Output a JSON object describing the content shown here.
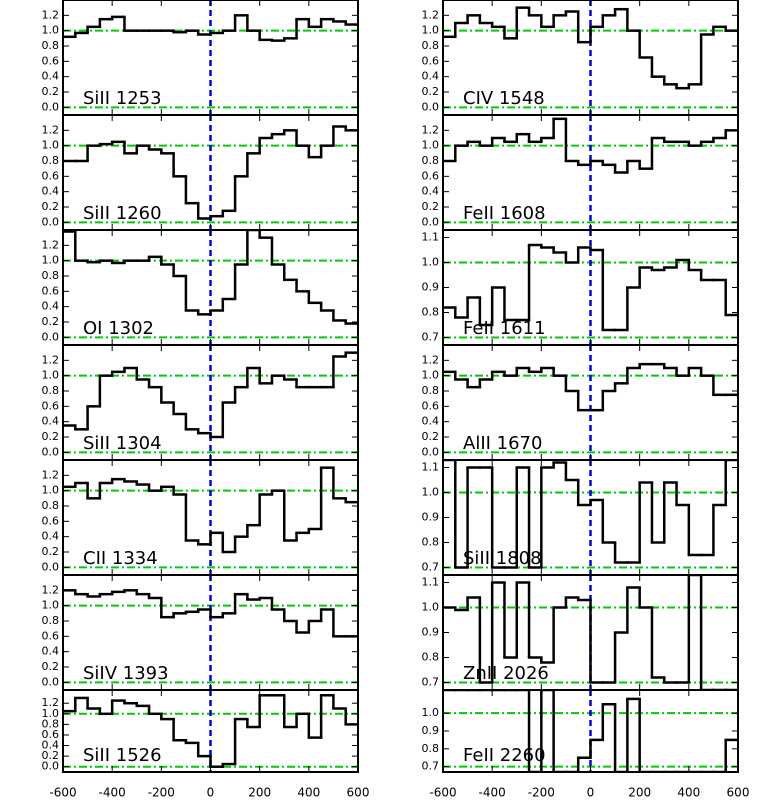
{
  "chart_data": {
    "type": "step",
    "xlim": [
      -600,
      600
    ],
    "xticks": [
      -600,
      -400,
      -200,
      0,
      200,
      400,
      600
    ],
    "bins": [
      -600,
      -550,
      -500,
      -450,
      -400,
      -350,
      -300,
      -250,
      -200,
      -150,
      -100,
      -50,
      0,
      50,
      100,
      150,
      200,
      250,
      300,
      350,
      400,
      450,
      500,
      550,
      600
    ],
    "continuum": 1,
    "center": 0,
    "line_color": "#000000",
    "continuum_color": "#00cc00",
    "center_color": "#0000dd",
    "panels": [
      {
        "label": "SiII 1253",
        "ylim": [
          -0.1,
          1.4
        ],
        "yticks": [
          {
            "value": 0,
            "label": "0.0"
          },
          0.2,
          0.4,
          0.6,
          0.8,
          {
            "value": 1,
            "label": "1.0"
          },
          1.2
        ],
        "values": [
          0.92,
          0.97,
          1.05,
          1.15,
          1.18,
          1.0,
          1.0,
          1.0,
          1.0,
          0.98,
          1.0,
          0.95,
          0.97,
          1.0,
          1.2,
          1.0,
          0.88,
          0.87,
          0.9,
          1.15,
          1.05,
          1.15,
          1.12,
          1.08
        ]
      },
      {
        "label": "SiII 1260",
        "ylim": [
          -0.1,
          1.4
        ],
        "yticks": [
          {
            "value": 0,
            "label": "0.0"
          },
          0.2,
          0.4,
          0.6,
          0.8,
          {
            "value": 1,
            "label": "1.0"
          },
          1.2
        ],
        "values": [
          0.8,
          0.8,
          1.0,
          1.02,
          1.05,
          0.9,
          1.0,
          0.95,
          0.9,
          0.6,
          0.25,
          0.05,
          0.08,
          0.15,
          0.6,
          0.9,
          1.1,
          1.15,
          1.2,
          1.0,
          0.85,
          1.0,
          1.25,
          1.2
        ]
      },
      {
        "label": "OI 1302",
        "ylim": [
          -0.1,
          1.4
        ],
        "yticks": [
          {
            "value": 0,
            "label": "0.0"
          },
          0.2,
          0.4,
          0.6,
          0.8,
          {
            "value": 1,
            "label": "1.0"
          },
          1.2
        ],
        "values": [
          1.38,
          1.0,
          0.98,
          1.0,
          0.97,
          1.0,
          1.0,
          1.05,
          0.95,
          0.8,
          0.35,
          0.3,
          0.35,
          0.5,
          0.95,
          1.4,
          1.3,
          0.95,
          0.75,
          0.6,
          0.45,
          0.35,
          0.22,
          0.18
        ]
      },
      {
        "label": "SiII 1304",
        "ylim": [
          -0.1,
          1.4
        ],
        "yticks": [
          {
            "value": 0,
            "label": "0.0"
          },
          0.2,
          0.4,
          0.6,
          0.8,
          {
            "value": 1,
            "label": "1.0"
          },
          1.2
        ],
        "values": [
          0.35,
          0.3,
          0.6,
          1.0,
          1.05,
          1.1,
          0.95,
          0.85,
          0.65,
          0.5,
          0.3,
          0.25,
          0.2,
          0.65,
          0.85,
          1.1,
          0.9,
          1.0,
          0.95,
          0.85,
          0.85,
          0.85,
          1.25,
          1.3
        ]
      },
      {
        "label": "CII 1334",
        "ylim": [
          -0.1,
          1.4
        ],
        "yticks": [
          {
            "value": 0,
            "label": "0.0"
          },
          0.2,
          0.4,
          0.6,
          0.8,
          {
            "value": 1,
            "label": "1.0"
          },
          1.2
        ],
        "values": [
          1.05,
          1.1,
          0.9,
          1.1,
          1.15,
          1.12,
          1.08,
          1.0,
          1.05,
          0.95,
          0.35,
          0.3,
          0.45,
          0.2,
          0.4,
          0.55,
          0.95,
          1.0,
          0.35,
          0.45,
          0.5,
          1.3,
          0.9,
          0.85
        ]
      },
      {
        "label": "SiIV 1393",
        "ylim": [
          -0.1,
          1.4
        ],
        "yticks": [
          {
            "value": 0,
            "label": "0.0"
          },
          0.2,
          0.4,
          0.6,
          0.8,
          {
            "value": 1,
            "label": "1.0"
          },
          1.2
        ],
        "values": [
          1.2,
          1.15,
          1.12,
          1.15,
          1.18,
          1.2,
          1.15,
          1.1,
          0.85,
          0.9,
          0.92,
          0.95,
          0.85,
          0.9,
          1.15,
          1.08,
          1.1,
          0.95,
          0.8,
          0.65,
          0.8,
          0.95,
          0.6,
          0.6
        ]
      },
      {
        "label": "SiII 1526",
        "ylim": [
          -0.1,
          1.45
        ],
        "yticks": [
          {
            "value": 0,
            "label": "0.0"
          },
          0.2,
          0.4,
          0.6,
          0.8,
          {
            "value": 1,
            "label": "1.0"
          },
          1.2
        ],
        "values": [
          1.05,
          1.3,
          1.1,
          1.0,
          1.25,
          1.2,
          1.15,
          1.0,
          0.9,
          0.5,
          0.45,
          0.2,
          0.0,
          0.05,
          0.9,
          0.75,
          1.35,
          1.35,
          0.75,
          1.0,
          0.55,
          1.35,
          1.1,
          0.8
        ]
      },
      {
        "label": "CIV 1548",
        "ylim": [
          -0.1,
          1.4
        ],
        "yticks": [
          {
            "value": 0,
            "label": "0.0"
          },
          0.2,
          0.4,
          0.6,
          0.8,
          {
            "value": 1,
            "label": "1.0"
          },
          1.2
        ],
        "values": [
          0.92,
          1.1,
          1.2,
          1.1,
          1.05,
          0.9,
          1.3,
          1.2,
          1.05,
          1.2,
          1.25,
          0.85,
          1.05,
          1.2,
          1.28,
          1.0,
          0.65,
          0.4,
          0.3,
          0.25,
          0.3,
          0.95,
          1.05,
          1.0
        ]
      },
      {
        "label": "FeII 1608",
        "ylim": [
          -0.1,
          1.4
        ],
        "yticks": [
          {
            "value": 0,
            "label": "0.0"
          },
          0.2,
          0.4,
          0.6,
          0.8,
          {
            "value": 1,
            "label": "1.0"
          },
          1.2
        ],
        "values": [
          0.8,
          1.0,
          1.05,
          1.0,
          1.1,
          1.05,
          1.15,
          1.05,
          1.1,
          1.35,
          0.8,
          0.75,
          0.8,
          0.75,
          0.65,
          0.8,
          0.7,
          1.1,
          1.05,
          1.05,
          1.0,
          1.05,
          1.1,
          1.2
        ]
      },
      {
        "label": "FeII 1611",
        "ylim": [
          0.67,
          1.13
        ],
        "yticks": [
          0.7,
          0.8,
          0.9,
          {
            "value": 1,
            "label": "1.0"
          },
          1.1
        ],
        "values": [
          0.82,
          0.78,
          0.86,
          0.75,
          0.9,
          0.77,
          0.77,
          1.07,
          1.06,
          1.04,
          1.0,
          1.06,
          1.05,
          0.73,
          0.73,
          0.9,
          0.98,
          0.97,
          0.98,
          1.01,
          0.97,
          0.93,
          0.93,
          0.79
        ]
      },
      {
        "label": "AlII 1670",
        "ylim": [
          -0.1,
          1.4
        ],
        "yticks": [
          {
            "value": 0,
            "label": "0.0"
          },
          0.2,
          0.4,
          0.6,
          0.8,
          {
            "value": 1,
            "label": "1.0"
          },
          1.2
        ],
        "values": [
          1.05,
          0.95,
          0.85,
          0.95,
          1.05,
          1.0,
          1.1,
          1.05,
          1.1,
          1.0,
          0.8,
          0.55,
          0.55,
          0.8,
          0.9,
          1.1,
          1.15,
          1.15,
          1.1,
          1.0,
          1.1,
          1.0,
          0.75,
          0.75
        ]
      },
      {
        "label": "SiII 1808",
        "ylim": [
          0.67,
          1.13
        ],
        "yticks": [
          0.7,
          0.8,
          0.9,
          {
            "value": 1,
            "label": "1.0"
          },
          1.1
        ],
        "values": [
          1.13,
          0.7,
          1.1,
          1.1,
          0.7,
          0.7,
          1.1,
          0.7,
          1.1,
          1.12,
          1.05,
          0.95,
          0.97,
          0.8,
          0.72,
          0.72,
          1.04,
          0.8,
          1.04,
          0.95,
          0.75,
          0.75,
          0.95,
          1.13
        ]
      },
      {
        "label": "ZnII 2026",
        "ylim": [
          0.67,
          1.13
        ],
        "yticks": [
          0.7,
          0.8,
          0.9,
          {
            "value": 1,
            "label": "1.0"
          },
          1.1
        ],
        "values": [
          1.0,
          0.99,
          1.04,
          0.7,
          1.1,
          0.8,
          1.1,
          0.8,
          0.78,
          1.0,
          1.04,
          1.03,
          0.7,
          0.7,
          0.9,
          1.08,
          1.0,
          0.72,
          0.7,
          0.7,
          1.13,
          0.67,
          0.67,
          0.67
        ]
      },
      {
        "label": "FeII 2260",
        "ylim": [
          0.67,
          1.13
        ],
        "yticks": [
          0.7,
          0.8,
          0.9,
          {
            "value": 1,
            "label": "1.0"
          }
        ],
        "values": [
          1.13,
          1.13,
          1.13,
          1.13,
          1.13,
          1.13,
          1.13,
          0.67,
          1.13,
          0.67,
          0.67,
          0.75,
          0.85,
          1.05,
          0.67,
          1.08,
          0.67,
          0.67,
          0.67,
          0.67,
          0.67,
          0.67,
          0.67,
          0.85
        ]
      }
    ]
  }
}
